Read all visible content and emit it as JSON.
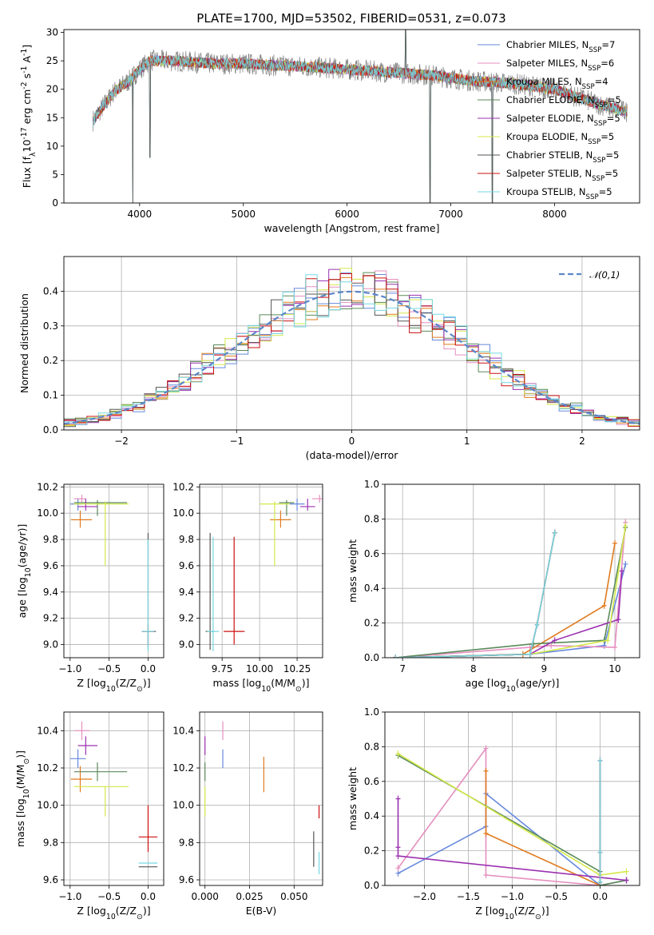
{
  "title": "PLATE=1700, MJD=53502, FIBERID=0531, z=0.073",
  "colors": [
    "#6688dd",
    "#e07b1e",
    "#5a8a5a",
    "#9b30b0",
    "#e58fbf",
    "#7a7a7a",
    "#d4e84a",
    "#75d8e2",
    "#cc1111",
    "#555555"
  ],
  "series": [
    {
      "name": "Chabrier MILES, N$_{SSP}$=7",
      "imf": "Chabrier",
      "lib": "MILES",
      "nssp": 7,
      "color": "#6688dd"
    },
    {
      "name": "Salpeter MILES, N$_{SSP}$=6",
      "imf": "Salpeter",
      "lib": "MILES",
      "nssp": 6,
      "color": "#e58fbf"
    },
    {
      "name": "Kroupa MILES, N$_{SSP}$=4",
      "imf": "Kroupa",
      "lib": "MILES",
      "nssp": 4,
      "color": "#e07b1e"
    },
    {
      "name": "Chabrier ELODIE, N$_{SSP}$=5",
      "imf": "Chabrier",
      "lib": "ELODIE",
      "nssp": 5,
      "color": "#5a8a5a"
    },
    {
      "name": "Salpeter ELODIE, N$_{SSP}$=5",
      "imf": "Salpeter",
      "lib": "ELODIE",
      "nssp": 5,
      "color": "#9b30b0"
    },
    {
      "name": "Kroupa ELODIE, N$_{SSP}$=5",
      "imf": "Kroupa",
      "lib": "ELODIE",
      "nssp": 5,
      "color": "#d4e84a"
    },
    {
      "name": "Chabrier STELIB, N$_{SSP}$=5",
      "imf": "Chabrier",
      "lib": "STELIB",
      "nssp": 5,
      "color": "#555555"
    },
    {
      "name": "Salpeter STELIB, N$_{SSP}$=5",
      "imf": "Salpeter",
      "lib": "STELIB",
      "nssp": 5,
      "color": "#cc1111"
    },
    {
      "name": "Kroupa STELIB, N$_{SSP}$=5",
      "imf": "Kroupa",
      "lib": "STELIB",
      "nssp": 5,
      "color": "#75d8e2"
    }
  ],
  "chart_data": [
    {
      "type": "line",
      "id": "spectrum",
      "xlabel": "wavelength [Angstrom, rest frame]",
      "ylabel": "Flux [f$_\\lambda$10$^{-17}$ erg cm$^{-2}$ s$^{-1}$ A$^{-1}$]",
      "xlim": [
        3270,
        8820
      ],
      "ylim": [
        0,
        30.5
      ],
      "xticks": [
        4000,
        5000,
        6000,
        7000,
        8000
      ],
      "yticks": [
        0,
        5,
        10,
        15,
        20,
        25,
        30
      ],
      "data_continuum": {
        "x": [
          3550,
          3650,
          3750,
          3900,
          4000,
          4100,
          4300,
          4500,
          4700,
          5000,
          5300,
          5600,
          6000,
          6400,
          6800,
          7200,
          7600,
          8000,
          8400,
          8700
        ],
        "y": [
          14.5,
          17,
          19.5,
          21.5,
          23.5,
          25,
          25,
          24.8,
          24.5,
          24.5,
          24.2,
          24,
          23.5,
          23,
          22.5,
          21.5,
          21,
          20,
          17.5,
          16
        ]
      },
      "noise_amplitude": 1.2,
      "features": [
        {
          "x": 3934,
          "ymin": 0,
          "note": "deep dip"
        },
        {
          "x": 4100,
          "ymin": 8,
          "note": "dip"
        },
        {
          "x": 6563,
          "ymax": 30.5,
          "note": "spike"
        },
        {
          "x": 6800,
          "ymin": 0,
          "note": "dip"
        },
        {
          "x": 7400,
          "ymin": 0,
          "note": "dip"
        }
      ],
      "legend_position": "upper-right"
    },
    {
      "type": "step-histogram",
      "id": "residuals",
      "xlabel": "(data-model)/error",
      "ylabel": "Normed distribution",
      "xlim": [
        -2.5,
        2.5
      ],
      "ylim": [
        0,
        0.5
      ],
      "xticks": [
        -2,
        -1,
        0,
        1,
        2
      ],
      "yticks": [
        0.0,
        0.1,
        0.2,
        0.3,
        0.4
      ],
      "bin_width": 0.1,
      "reference_curve": {
        "label": "$\\mathcal{N}(0,1)$",
        "mu": 0,
        "sigma": 1,
        "color": "#5b86c8",
        "style": "dashed"
      },
      "legend_position": "upper-right",
      "grid": true
    },
    {
      "type": "scatter-errorbar",
      "id": "age_vs_Z",
      "xlabel": "Z [log$_{10}$(Z/Z$_\\odot$)]",
      "ylabel": "age  [log$_{10}$(age/yr)]",
      "xlim": [
        -1.08,
        0.2
      ],
      "ylim": [
        8.9,
        10.22
      ],
      "xticks": [
        -1.0,
        -0.5,
        0.0
      ],
      "yticks": [
        9.0,
        9.2,
        9.4,
        9.6,
        9.8,
        10.0,
        10.2
      ],
      "points": [
        {
          "s": 0,
          "x": -0.9,
          "y": 10.07,
          "xe": [
            0.1,
            0.05
          ],
          "ye": [
            0.05,
            0.04
          ]
        },
        {
          "s": 1,
          "x": -0.85,
          "y": 10.11,
          "xe": [
            0.1,
            0.05
          ],
          "ye": [
            0.03,
            0.03
          ]
        },
        {
          "s": 2,
          "x": -0.87,
          "y": 9.95,
          "xe": [
            0.12,
            0.15
          ],
          "ye": [
            0.06,
            0.07
          ]
        },
        {
          "s": 3,
          "x": -0.65,
          "y": 10.08,
          "xe": [
            0.3,
            0.38
          ],
          "ye": [
            0.1,
            0.02
          ]
        },
        {
          "s": 4,
          "x": -0.8,
          "y": 10.05,
          "xe": [
            0.1,
            0.15
          ],
          "ye": [
            0.03,
            0.06
          ]
        },
        {
          "s": 5,
          "x": -0.55,
          "y": 10.07,
          "xe": [
            0.4,
            0.3
          ],
          "ye": [
            0.47,
            0.02
          ]
        },
        {
          "s": 6,
          "x": 0.0,
          "y": 9.1,
          "xe": [
            0.08,
            0.1
          ],
          "ye": [
            0.14,
            0.75
          ]
        },
        {
          "s": 7,
          "x": 0.0,
          "y": 9.1,
          "xe": [
            0.08,
            0.08
          ],
          "ye": [
            0.1,
            0.05
          ]
        },
        {
          "s": 8,
          "x": 0.0,
          "y": 9.1,
          "xe": [
            0.08,
            0.08
          ],
          "ye": [
            0.15,
            0.7
          ]
        }
      ],
      "grid": true
    },
    {
      "type": "scatter-errorbar",
      "id": "age_vs_mass",
      "xlabel": "mass [log$_{10}$(M/M$_\\odot$)]",
      "ylabel": "",
      "xlim": [
        9.6,
        10.42
      ],
      "ylim": [
        8.9,
        10.22
      ],
      "xticks": [
        9.75,
        10.0,
        10.25
      ],
      "xticklabels": [
        "9.75",
        "10.00",
        "10.25"
      ],
      "yticks": [
        9.0,
        9.2,
        9.4,
        9.6,
        9.8,
        10.0,
        10.2
      ],
      "points": [
        {
          "s": 0,
          "x": 10.25,
          "y": 10.07,
          "xe": [
            0.05,
            0.05
          ],
          "ye": [
            0.05,
            0.04
          ]
        },
        {
          "s": 1,
          "x": 10.4,
          "y": 10.11,
          "xe": [
            0.05,
            0.05
          ],
          "ye": [
            0.03,
            0.03
          ]
        },
        {
          "s": 2,
          "x": 10.14,
          "y": 9.95,
          "xe": [
            0.07,
            0.07
          ],
          "ye": [
            0.06,
            0.07
          ]
        },
        {
          "s": 3,
          "x": 10.18,
          "y": 10.08,
          "xe": [
            0.05,
            0.05
          ],
          "ye": [
            0.1,
            0.02
          ]
        },
        {
          "s": 4,
          "x": 10.32,
          "y": 10.05,
          "xe": [
            0.05,
            0.05
          ],
          "ye": [
            0.03,
            0.06
          ]
        },
        {
          "s": 5,
          "x": 10.1,
          "y": 10.07,
          "xe": [
            0.1,
            0.1
          ],
          "ye": [
            0.47,
            0.02
          ]
        },
        {
          "s": 6,
          "x": 9.67,
          "y": 9.1,
          "xe": [
            0.03,
            0.03
          ],
          "ye": [
            0.14,
            0.75
          ]
        },
        {
          "s": 7,
          "x": 9.83,
          "y": 9.1,
          "xe": [
            0.07,
            0.07
          ],
          "ye": [
            0.1,
            0.72
          ]
        },
        {
          "s": 8,
          "x": 9.69,
          "y": 9.1,
          "xe": [
            0.04,
            0.04
          ],
          "ye": [
            0.15,
            0.72
          ]
        }
      ],
      "grid": true
    },
    {
      "type": "line",
      "id": "weight_vs_age",
      "xlabel": "age  [log$_{10}$(age/yr)]",
      "ylabel": "mass weight",
      "xlim": [
        6.75,
        10.35
      ],
      "ylim": [
        0,
        1.0
      ],
      "xticks": [
        7,
        8,
        9,
        10
      ],
      "yticks": [
        0.0,
        0.2,
        0.4,
        0.6,
        0.8,
        1.0
      ],
      "lines": [
        {
          "s": 0,
          "x": [
            6.9,
            8.8,
            9.85,
            10.15
          ],
          "y": [
            0.0,
            0.02,
            0.07,
            0.54
          ]
        },
        {
          "s": 1,
          "x": [
            6.9,
            8.8,
            9.1,
            10.0,
            10.15
          ],
          "y": [
            0.0,
            0.06,
            0.07,
            0.06,
            0.78
          ]
        },
        {
          "s": 2,
          "x": [
            6.9,
            8.7,
            9.85,
            10.0
          ],
          "y": [
            0.0,
            0.02,
            0.3,
            0.66
          ]
        },
        {
          "s": 3,
          "x": [
            6.9,
            8.85,
            9.85,
            10.15
          ],
          "y": [
            0.0,
            0.08,
            0.1,
            0.75
          ]
        },
        {
          "s": 4,
          "x": [
            6.9,
            8.8,
            9.15,
            10.05,
            10.1
          ],
          "y": [
            0.0,
            0.02,
            0.1,
            0.22,
            0.5
          ]
        },
        {
          "s": 5,
          "x": [
            6.9,
            8.8,
            9.9,
            10.15
          ],
          "y": [
            0.0,
            0.02,
            0.1,
            0.76
          ]
        },
        {
          "s": 6,
          "x": [
            6.9,
            8.8,
            8.9,
            9.15
          ],
          "y": [
            0.0,
            0.02,
            0.19,
            0.72
          ]
        },
        {
          "s": 7,
          "x": [
            6.9,
            8.8,
            8.9,
            9.15
          ],
          "y": [
            0.0,
            0.02,
            0.19,
            0.72
          ]
        },
        {
          "s": 8,
          "x": [
            6.9,
            8.8,
            8.9,
            9.15
          ],
          "y": [
            0.0,
            0.02,
            0.19,
            0.72
          ]
        }
      ],
      "grid": true
    },
    {
      "type": "scatter-errorbar",
      "id": "mass_vs_Z",
      "xlabel": "Z [log$_{10}$(Z/Z$_\\odot$)]",
      "ylabel": "mass [log$_{10}$(M/M$_\\odot$)]",
      "xlim": [
        -1.08,
        0.2
      ],
      "ylim": [
        9.57,
        10.5
      ],
      "xticks": [
        -1.0,
        -0.5,
        0.0
      ],
      "yticks": [
        9.6,
        9.8,
        10.0,
        10.2,
        10.4
      ],
      "points": [
        {
          "s": 0,
          "x": -0.9,
          "y": 10.25,
          "xe": [
            0.1,
            0.1
          ],
          "ye": [
            0.05,
            0.05
          ]
        },
        {
          "s": 1,
          "x": -0.85,
          "y": 10.4,
          "xe": [
            0.1,
            0.1
          ],
          "ye": [
            0.05,
            0.05
          ]
        },
        {
          "s": 2,
          "x": -0.87,
          "y": 10.14,
          "xe": [
            0.12,
            0.15
          ],
          "ye": [
            0.07,
            0.07
          ]
        },
        {
          "s": 3,
          "x": -0.65,
          "y": 10.18,
          "xe": [
            0.3,
            0.38
          ],
          "ye": [
            0.05,
            0.05
          ]
        },
        {
          "s": 4,
          "x": -0.8,
          "y": 10.32,
          "xe": [
            0.1,
            0.15
          ],
          "ye": [
            0.05,
            0.05
          ]
        },
        {
          "s": 5,
          "x": -0.55,
          "y": 10.1,
          "xe": [
            0.4,
            0.3
          ],
          "ye": [
            0.16,
            0.0
          ]
        },
        {
          "s": 6,
          "x": 0.0,
          "y": 9.67,
          "xe": [
            0.12,
            0.12
          ],
          "ye": [
            0.0,
            0.0
          ]
        },
        {
          "s": 7,
          "x": 0.0,
          "y": 9.83,
          "xe": [
            0.12,
            0.12
          ],
          "ye": [
            0.08,
            0.17
          ]
        },
        {
          "s": 8,
          "x": 0.0,
          "y": 9.69,
          "xe": [
            0.12,
            0.12
          ],
          "ye": [
            0.0,
            0.0
          ]
        }
      ],
      "grid": true
    },
    {
      "type": "errorbar",
      "id": "mass_vs_EBV",
      "xlabel": "E(B-V)",
      "ylabel": "",
      "xlim": [
        -0.003,
        0.066
      ],
      "ylim": [
        9.57,
        10.5
      ],
      "xticks": [
        0.0,
        0.025,
        0.05
      ],
      "xticklabels": [
        "0.000",
        "0.025",
        "0.050"
      ],
      "yticks": [
        9.6,
        9.8,
        10.0,
        10.2,
        10.4
      ],
      "points": [
        {
          "s": 0,
          "x": 0.01,
          "y": 10.25,
          "ye": [
            0.05,
            0.05
          ]
        },
        {
          "s": 1,
          "x": 0.01,
          "y": 10.4,
          "ye": [
            0.05,
            0.05
          ]
        },
        {
          "s": 2,
          "x": 0.033,
          "y": 10.14,
          "ye": [
            0.07,
            0.12
          ]
        },
        {
          "s": 3,
          "x": 0.0,
          "y": 10.18,
          "ye": [
            0.05,
            0.05
          ]
        },
        {
          "s": 4,
          "x": 0.0,
          "y": 10.32,
          "ye": [
            0.05,
            0.05
          ]
        },
        {
          "s": 5,
          "x": 0.0,
          "y": 10.1,
          "ye": [
            0.16,
            0.0
          ]
        },
        {
          "s": 6,
          "x": 0.061,
          "y": 9.67,
          "ye": [
            0.0,
            0.19
          ]
        },
        {
          "s": 7,
          "x": 0.064,
          "y": 9.93,
          "ye": [
            0.0,
            0.07
          ]
        },
        {
          "s": 8,
          "x": 0.064,
          "y": 9.75,
          "ye": [
            0.12,
            0.0
          ]
        }
      ],
      "grid": true
    },
    {
      "type": "line",
      "id": "weight_vs_Z",
      "xlabel": "Z [log$_{10}$(Z/Z$_\\odot$)]",
      "ylabel": "mass weight",
      "xlim": [
        -2.45,
        0.45
      ],
      "ylim": [
        0,
        1.0
      ],
      "xticks": [
        -2.0,
        -1.5,
        -1.0,
        -0.5,
        0.0
      ],
      "yticks": [
        0.0,
        0.2,
        0.4,
        0.6,
        0.8,
        1.0
      ],
      "lines": [
        {
          "s": 0,
          "x": [
            -2.3,
            -1.3,
            -1.3,
            0.0,
            0.3
          ],
          "y": [
            0.07,
            0.34,
            0.53,
            0.0,
            0.03
          ]
        },
        {
          "s": 1,
          "x": [
            -2.3,
            -1.3,
            -1.3,
            0.0,
            0.3
          ],
          "y": [
            0.1,
            0.79,
            0.06,
            0.0,
            0.03
          ]
        },
        {
          "s": 2,
          "x": [
            -1.3,
            -1.3,
            0.0,
            0.0
          ],
          "y": [
            0.66,
            0.3,
            0.0,
            0.02
          ]
        },
        {
          "s": 3,
          "x": [
            -2.3,
            0.0,
            0.0,
            0.3
          ],
          "y": [
            0.75,
            0.08,
            0.0,
            0.03
          ]
        },
        {
          "s": 4,
          "x": [
            -2.3,
            -2.3,
            -2.3,
            0.3
          ],
          "y": [
            0.5,
            0.22,
            0.17,
            0.03
          ]
        },
        {
          "s": 5,
          "x": [
            -2.3,
            0.0,
            0.3
          ],
          "y": [
            0.76,
            0.06,
            0.08
          ]
        },
        {
          "s": 6,
          "x": [
            0.0,
            0.0,
            0.0
          ],
          "y": [
            0.72,
            0.19,
            0.02
          ]
        },
        {
          "s": 7,
          "x": [
            0.0,
            0.0,
            0.0
          ],
          "y": [
            0.72,
            0.19,
            0.02
          ]
        },
        {
          "s": 8,
          "x": [
            0.0,
            0.0,
            0.0
          ],
          "y": [
            0.72,
            0.19,
            0.02
          ]
        }
      ],
      "grid": true
    }
  ]
}
